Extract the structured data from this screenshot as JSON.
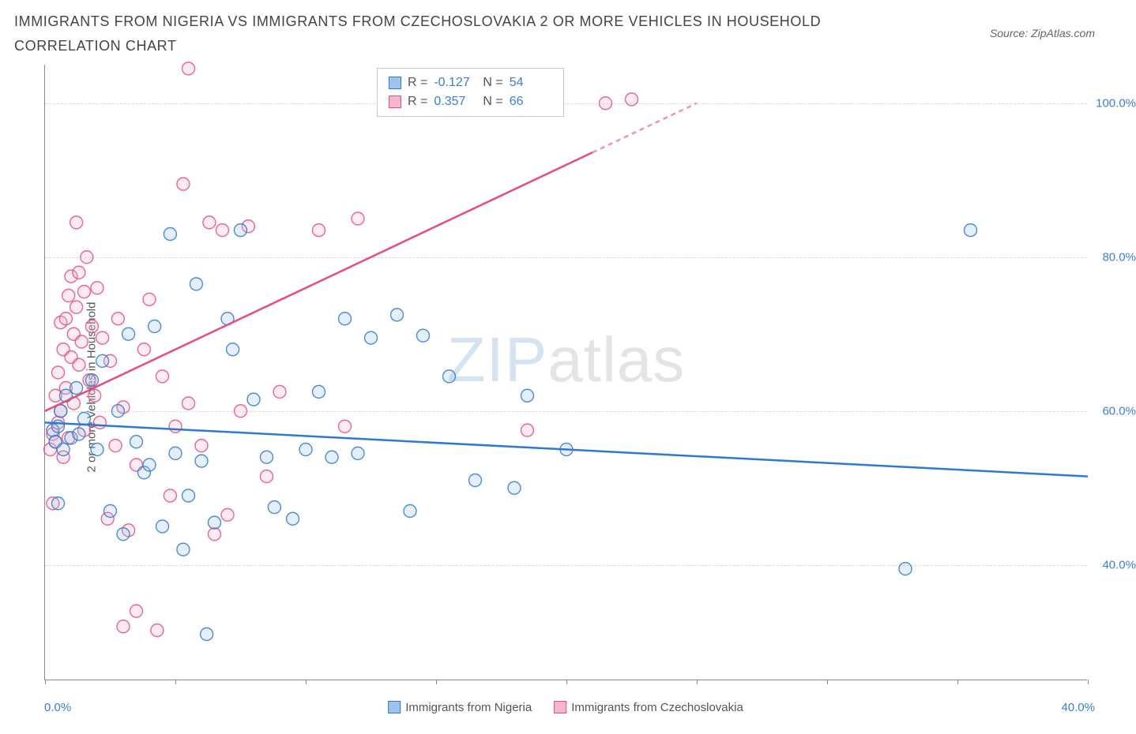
{
  "title": "IMMIGRANTS FROM NIGERIA VS IMMIGRANTS FROM CZECHOSLOVAKIA 2 OR MORE VEHICLES IN HOUSEHOLD CORRELATION CHART",
  "source": "Source: ZipAtlas.com",
  "watermark": {
    "part1": "ZIP",
    "part2": "atlas"
  },
  "chart": {
    "type": "scatter",
    "y_axis_label": "2 or more Vehicles in Household",
    "xlim": [
      0,
      40
    ],
    "ylim": [
      25,
      105
    ],
    "x_ticks": [
      0,
      5,
      10,
      15,
      20,
      25,
      30,
      35,
      40
    ],
    "x_tick_labels": {
      "min": "0.0%",
      "max": "40.0%"
    },
    "y_gridlines": [
      40,
      60,
      80,
      100
    ],
    "y_tick_labels": [
      "40.0%",
      "60.0%",
      "80.0%",
      "100.0%"
    ],
    "background_color": "#ffffff",
    "grid_color": "#d8d8d8",
    "axis_color": "#888888",
    "tick_label_color": "#3b7dd8",
    "marker_radius": 8,
    "marker_fill_opacity": 0.28,
    "marker_stroke_width": 1.4,
    "line_width": 2.5,
    "series": [
      {
        "name": "Immigrants from Nigeria",
        "color_stroke": "#2f79d0",
        "color_fill": "#9fc4ec",
        "R": "-0.127",
        "N": "54",
        "regression": {
          "x1": 0,
          "y1": 58.5,
          "x2": 40,
          "y2": 51.5
        },
        "points": [
          [
            0.3,
            57.5
          ],
          [
            0.4,
            56.0
          ],
          [
            0.5,
            58.0
          ],
          [
            0.5,
            48.0
          ],
          [
            0.6,
            60.0
          ],
          [
            0.7,
            55.0
          ],
          [
            0.8,
            62.0
          ],
          [
            1.0,
            56.5
          ],
          [
            1.2,
            63.0
          ],
          [
            1.3,
            57.0
          ],
          [
            1.5,
            59.0
          ],
          [
            1.8,
            64.0
          ],
          [
            2.0,
            55.0
          ],
          [
            2.2,
            66.5
          ],
          [
            2.5,
            47.0
          ],
          [
            2.8,
            60.0
          ],
          [
            3.0,
            44.0
          ],
          [
            3.2,
            70.0
          ],
          [
            3.5,
            56.0
          ],
          [
            3.8,
            52.0
          ],
          [
            4.0,
            53.0
          ],
          [
            4.2,
            71.0
          ],
          [
            4.5,
            45.0
          ],
          [
            4.8,
            83.0
          ],
          [
            5.0,
            54.5
          ],
          [
            5.3,
            42.0
          ],
          [
            5.5,
            49.0
          ],
          [
            5.8,
            76.5
          ],
          [
            6.0,
            53.5
          ],
          [
            6.2,
            31.0
          ],
          [
            6.5,
            45.5
          ],
          [
            7.0,
            72.0
          ],
          [
            7.2,
            68.0
          ],
          [
            7.5,
            83.5
          ],
          [
            8.0,
            61.5
          ],
          [
            8.5,
            54.0
          ],
          [
            8.8,
            47.5
          ],
          [
            9.5,
            46.0
          ],
          [
            10.0,
            55.0
          ],
          [
            10.5,
            62.5
          ],
          [
            11.0,
            54.0
          ],
          [
            11.5,
            72.0
          ],
          [
            12.0,
            54.5
          ],
          [
            12.5,
            69.5
          ],
          [
            13.5,
            72.5
          ],
          [
            14.0,
            47.0
          ],
          [
            14.5,
            69.8
          ],
          [
            15.5,
            64.5
          ],
          [
            16.5,
            51.0
          ],
          [
            18.0,
            50.0
          ],
          [
            18.5,
            62.0
          ],
          [
            20.0,
            55.0
          ],
          [
            33.0,
            39.5
          ],
          [
            35.5,
            83.5
          ]
        ]
      },
      {
        "name": "Immigrants from Czechoslovakia",
        "color_stroke": "#e94b7e",
        "color_fill": "#f6b6cc",
        "R": "0.357",
        "N": "66",
        "regression": {
          "x1": 0,
          "y1": 60.0,
          "x2": 25,
          "y2": 100.0
        },
        "regression_dashed_from_x": 21,
        "points": [
          [
            0.2,
            55.0
          ],
          [
            0.3,
            57.0
          ],
          [
            0.3,
            48.0
          ],
          [
            0.4,
            56.0
          ],
          [
            0.4,
            62.0
          ],
          [
            0.5,
            58.5
          ],
          [
            0.5,
            65.0
          ],
          [
            0.6,
            71.5
          ],
          [
            0.6,
            60.0
          ],
          [
            0.7,
            54.0
          ],
          [
            0.7,
            68.0
          ],
          [
            0.8,
            63.0
          ],
          [
            0.8,
            72.0
          ],
          [
            0.9,
            75.0
          ],
          [
            0.9,
            56.5
          ],
          [
            1.0,
            77.5
          ],
          [
            1.0,
            67.0
          ],
          [
            1.1,
            70.0
          ],
          [
            1.1,
            61.0
          ],
          [
            1.2,
            73.5
          ],
          [
            1.2,
            84.5
          ],
          [
            1.3,
            66.0
          ],
          [
            1.3,
            78.0
          ],
          [
            1.4,
            69.0
          ],
          [
            1.5,
            75.5
          ],
          [
            1.5,
            57.5
          ],
          [
            1.6,
            80.0
          ],
          [
            1.7,
            64.0
          ],
          [
            1.8,
            71.0
          ],
          [
            1.9,
            62.0
          ],
          [
            2.0,
            76.0
          ],
          [
            2.1,
            58.5
          ],
          [
            2.2,
            69.5
          ],
          [
            2.4,
            46.0
          ],
          [
            2.5,
            66.5
          ],
          [
            2.7,
            55.5
          ],
          [
            2.8,
            72.0
          ],
          [
            3.0,
            60.5
          ],
          [
            3.0,
            32.0
          ],
          [
            3.2,
            44.5
          ],
          [
            3.5,
            53.0
          ],
          [
            3.5,
            34.0
          ],
          [
            3.8,
            68.0
          ],
          [
            4.0,
            74.5
          ],
          [
            4.3,
            31.5
          ],
          [
            4.5,
            64.5
          ],
          [
            4.8,
            49.0
          ],
          [
            5.0,
            58.0
          ],
          [
            5.3,
            89.5
          ],
          [
            5.5,
            61.0
          ],
          [
            5.5,
            104.5
          ],
          [
            6.0,
            55.5
          ],
          [
            6.3,
            84.5
          ],
          [
            6.5,
            44.0
          ],
          [
            6.8,
            83.5
          ],
          [
            7.0,
            46.5
          ],
          [
            7.5,
            60.0
          ],
          [
            7.8,
            84.0
          ],
          [
            8.5,
            51.5
          ],
          [
            9.0,
            62.5
          ],
          [
            10.5,
            83.5
          ],
          [
            11.5,
            58.0
          ],
          [
            12.0,
            85.0
          ],
          [
            18.5,
            57.5
          ],
          [
            21.5,
            100.0
          ],
          [
            22.5,
            100.5
          ]
        ]
      }
    ],
    "legend": {
      "stats_labels": {
        "R": "R =",
        "N": "N ="
      }
    }
  }
}
